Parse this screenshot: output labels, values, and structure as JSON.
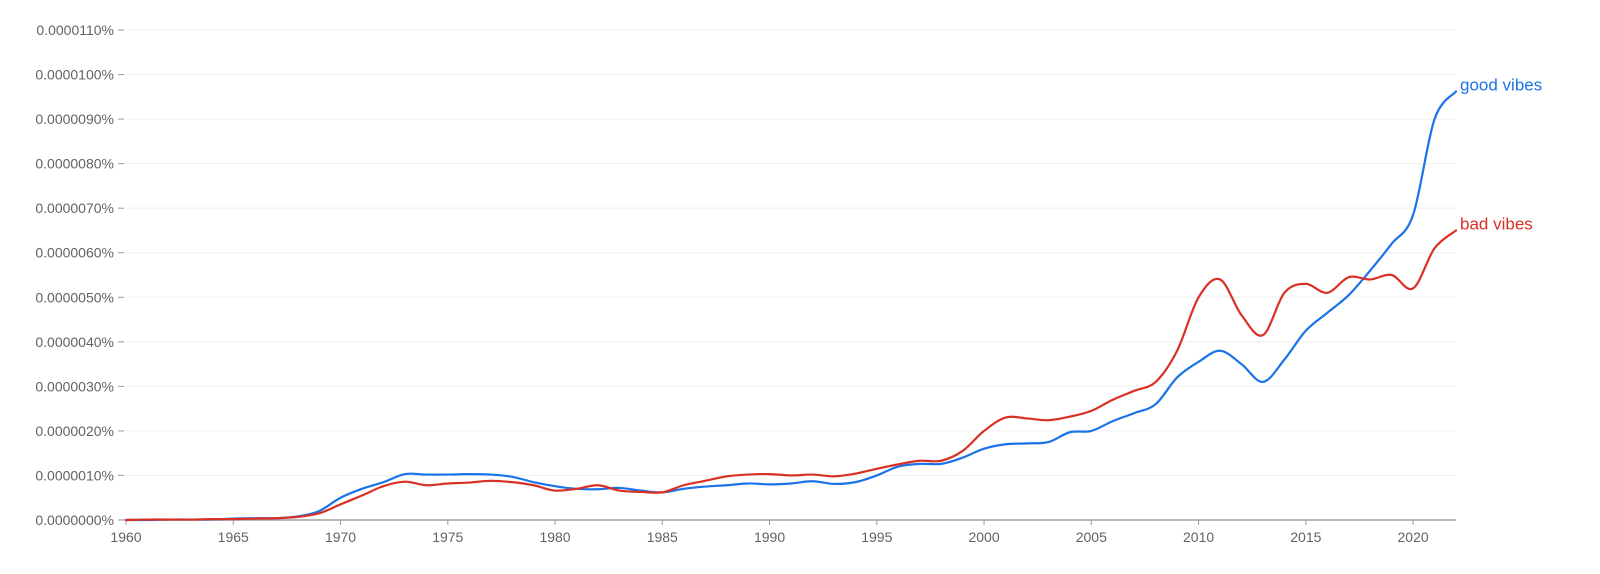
{
  "chart_data": {
    "type": "line",
    "title": "",
    "xlabel": "",
    "ylabel": "",
    "x_range": [
      1960,
      2022
    ],
    "y_range": [
      0,
      1.1e-05
    ],
    "x_ticks": [
      1960,
      1965,
      1970,
      1975,
      1980,
      1985,
      1990,
      1995,
      2000,
      2005,
      2010,
      2015,
      2020
    ],
    "x_tick_labels": [
      "1960",
      "1965",
      "1970",
      "1975",
      "1980",
      "1985",
      "1990",
      "1995",
      "2000",
      "2005",
      "2010",
      "2015",
      "2020"
    ],
    "y_ticks": [
      0,
      1e-06,
      2e-06,
      3e-06,
      4e-06,
      5e-06,
      6e-06,
      7e-06,
      8e-06,
      9e-06,
      1e-05,
      1.1e-05
    ],
    "y_tick_labels": [
      "0.0000000%",
      "0.0000010%",
      "0.0000020%",
      "0.0000030%",
      "0.0000040%",
      "0.0000050%",
      "0.0000060%",
      "0.0000070%",
      "0.0000080%",
      "0.0000090%",
      "0.0000100%",
      "0.0000110%"
    ],
    "grid": true,
    "legend": "line-end labels",
    "x": [
      1960,
      1961,
      1962,
      1963,
      1964,
      1965,
      1966,
      1967,
      1968,
      1969,
      1970,
      1971,
      1972,
      1973,
      1974,
      1975,
      1976,
      1977,
      1978,
      1979,
      1980,
      1981,
      1982,
      1983,
      1984,
      1985,
      1986,
      1987,
      1988,
      1989,
      1990,
      1991,
      1992,
      1993,
      1994,
      1995,
      1996,
      1997,
      1998,
      1999,
      2000,
      2001,
      2002,
      2003,
      2004,
      2005,
      2006,
      2007,
      2008,
      2009,
      2010,
      2011,
      2012,
      2013,
      2014,
      2015,
      2016,
      2017,
      2018,
      2019,
      2020,
      2021,
      2022
    ],
    "series": [
      {
        "name": "good vibes",
        "color": "#1a73e8",
        "values": [
          0.0,
          0.0,
          1e-08,
          1e-08,
          1e-08,
          3e-08,
          4e-08,
          4e-08,
          8e-08,
          2e-07,
          5e-07,
          7e-07,
          8.5e-07,
          1.03e-06,
          1.02e-06,
          1.02e-06,
          1.03e-06,
          1.02e-06,
          9.7e-07,
          8.5e-07,
          7.6e-07,
          7e-07,
          6.9e-07,
          7.2e-07,
          6.6e-07,
          6.2e-07,
          7e-07,
          7.5e-07,
          7.8e-07,
          8.2e-07,
          8e-07,
          8.2e-07,
          8.7e-07,
          8.1e-07,
          8.5e-07,
          1e-06,
          1.2e-06,
          1.26e-06,
          1.26e-06,
          1.4e-06,
          1.6e-06,
          1.7e-06,
          1.72e-06,
          1.75e-06,
          1.97e-06,
          2e-06,
          2.22e-06,
          2.4e-06,
          2.6e-06,
          3.2e-06,
          3.55e-06,
          3.8e-06,
          3.5e-06,
          3.1e-06,
          3.6e-06,
          4.25e-06,
          4.65e-06,
          5.05e-06,
          5.6e-06,
          6.2e-06,
          6.85e-06,
          9e-06,
          9.62e-06
        ]
      },
      {
        "name": "bad vibes",
        "color": "#d93025",
        "values": [
          0.0,
          1e-08,
          1e-08,
          1e-08,
          2e-08,
          2e-08,
          3e-08,
          4e-08,
          7e-08,
          1.5e-07,
          3.5e-07,
          5.5e-07,
          7.6e-07,
          8.6e-07,
          7.8e-07,
          8.2e-07,
          8.4e-07,
          8.8e-07,
          8.5e-07,
          7.8e-07,
          6.6e-07,
          7e-07,
          7.8e-07,
          6.6e-07,
          6.3e-07,
          6.2e-07,
          7.8e-07,
          8.8e-07,
          9.8e-07,
          1.02e-06,
          1.03e-06,
          1e-06,
          1.02e-06,
          9.8e-07,
          1.04e-06,
          1.15e-06,
          1.25e-06,
          1.33e-06,
          1.33e-06,
          1.55e-06,
          2e-06,
          2.3e-06,
          2.28e-06,
          2.24e-06,
          2.32e-06,
          2.45e-06,
          2.7e-06,
          2.9e-06,
          3.1e-06,
          3.8e-06,
          5e-06,
          5.4e-06,
          4.6e-06,
          4.15e-06,
          5.1e-06,
          5.3e-06,
          5.1e-06,
          5.45e-06,
          5.4e-06,
          5.5e-06,
          5.2e-06,
          6.1e-06,
          6.5e-06
        ]
      }
    ]
  }
}
